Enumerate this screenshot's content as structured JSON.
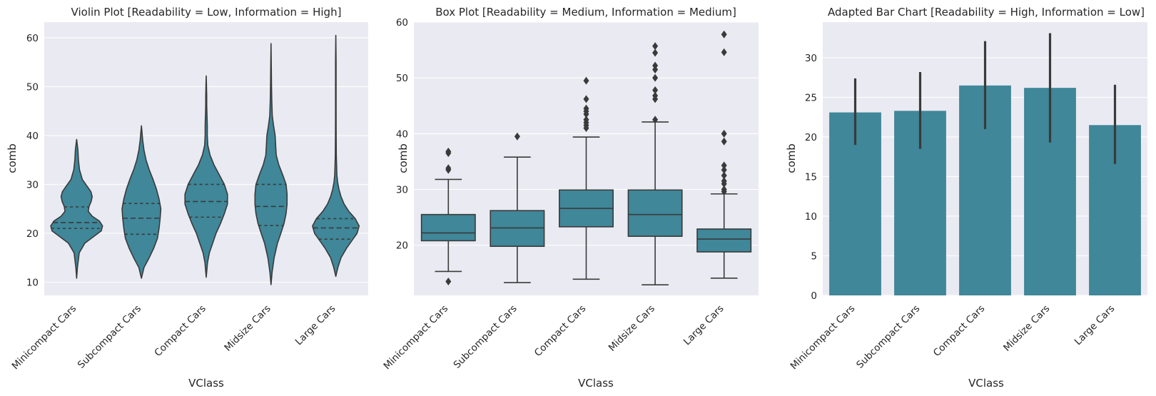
{
  "style": {
    "axes_bg": "#eaeaf2",
    "grid": "#ffffff",
    "fill": "#3f8799",
    "edge": "#3a3a3a"
  },
  "chart_data": [
    {
      "type": "violin",
      "title": "Violin Plot  [Readability = Low, Information = High]",
      "xlabel": "VClass",
      "ylabel": "comb",
      "categories": [
        "Minicompact Cars",
        "Subcompact Cars",
        "Compact Cars",
        "Midsize Cars",
        "Large Cars"
      ],
      "ylim": [
        7.3,
        63.2
      ],
      "yticks": [
        10,
        20,
        30,
        40,
        50,
        60
      ],
      "quartiles": [
        {
          "q1": 21.0,
          "median": 22.2,
          "q3": 25.4
        },
        {
          "q1": 19.8,
          "median": 23.1,
          "q3": 26.1
        },
        {
          "q1": 23.3,
          "median": 26.5,
          "q3": 30.0
        },
        {
          "q1": 21.6,
          "median": 25.5,
          "q3": 30.0
        },
        {
          "q1": 18.8,
          "median": 21.1,
          "q3": 23.0
        }
      ],
      "density_profiles": [
        {
          "y": [
            10.8,
            13,
            16,
            18,
            19.5,
            20.5,
            21.5,
            22.5,
            23.5,
            24.5,
            25.5,
            26.5,
            27.5,
            28.5,
            29.5,
            31,
            33,
            35,
            37,
            39.2
          ],
          "width": [
            0,
            0.03,
            0.1,
            0.32,
            0.7,
            0.95,
            1.0,
            0.88,
            0.6,
            0.45,
            0.48,
            0.56,
            0.6,
            0.55,
            0.42,
            0.22,
            0.11,
            0.07,
            0.05,
            0
          ]
        },
        {
          "y": [
            10.8,
            13,
            15,
            17,
            19,
            21,
            23,
            25,
            27,
            29,
            31,
            33,
            35,
            37,
            39,
            42
          ],
          "width": [
            0,
            0.1,
            0.3,
            0.48,
            0.62,
            0.68,
            0.72,
            0.75,
            0.68,
            0.58,
            0.45,
            0.3,
            0.18,
            0.1,
            0.05,
            0
          ]
        },
        {
          "y": [
            11,
            14,
            16,
            18,
            20,
            22,
            24,
            26,
            28,
            30,
            32,
            34,
            36,
            38,
            40,
            42,
            44,
            46,
            48,
            50,
            52.2
          ],
          "width": [
            0,
            0.05,
            0.12,
            0.25,
            0.38,
            0.55,
            0.7,
            0.82,
            0.82,
            0.7,
            0.5,
            0.3,
            0.15,
            0.06,
            0.04,
            0.04,
            0.03,
            0.02,
            0.02,
            0.01,
            0
          ]
        },
        {
          "y": [
            9.5,
            12,
            15,
            18,
            20,
            22,
            24,
            26,
            28,
            30,
            32,
            34,
            36,
            38,
            40,
            42,
            44,
            47,
            50,
            54,
            58.8
          ],
          "width": [
            0,
            0.04,
            0.12,
            0.25,
            0.38,
            0.5,
            0.58,
            0.62,
            0.62,
            0.58,
            0.45,
            0.3,
            0.2,
            0.18,
            0.16,
            0.1,
            0.05,
            0.03,
            0.02,
            0.01,
            0
          ]
        },
        {
          "y": [
            11.2,
            13,
            15,
            17,
            18.5,
            20,
            21.5,
            23,
            24.5,
            26,
            27.5,
            29,
            30.5,
            32,
            34,
            36,
            40,
            45,
            50,
            55,
            60.5
          ],
          "width": [
            0,
            0.08,
            0.2,
            0.42,
            0.62,
            0.82,
            0.9,
            0.75,
            0.5,
            0.32,
            0.2,
            0.12,
            0.07,
            0.04,
            0.03,
            0.02,
            0.015,
            0.01,
            0.01,
            0.01,
            0
          ]
        }
      ]
    },
    {
      "type": "box",
      "title": "Box Plot  [Readability = Medium, Information = Medium]",
      "xlabel": "VClass",
      "ylabel": "comb",
      "categories": [
        "Minicompact Cars",
        "Subcompact Cars",
        "Compact Cars",
        "Midsize Cars",
        "Large Cars"
      ],
      "ylim": [
        11,
        60
      ],
      "yticks": [
        20,
        30,
        40,
        50,
        60
      ],
      "boxes": [
        {
          "whisker_low": 15.3,
          "q1": 20.8,
          "median": 22.2,
          "q3": 25.5,
          "whisker_high": 31.8,
          "outliers": [
            13.5,
            33.5,
            33.8,
            36.5,
            36.8
          ]
        },
        {
          "whisker_low": 13.3,
          "q1": 19.8,
          "median": 23.1,
          "q3": 26.2,
          "whisker_high": 35.8,
          "outliers": [
            39.5
          ]
        },
        {
          "whisker_low": 13.9,
          "q1": 23.3,
          "median": 26.6,
          "q3": 29.9,
          "whisker_high": 39.4,
          "outliers": [
            41.0,
            41.5,
            42.0,
            42.5,
            43.5,
            44.0,
            44.5,
            46.2,
            49.5
          ]
        },
        {
          "whisker_low": 12.9,
          "q1": 21.6,
          "median": 25.5,
          "q3": 29.9,
          "whisker_high": 42.1,
          "outliers": [
            42.5,
            46.2,
            46.8,
            47.8,
            50.0,
            51.5,
            52.2,
            54.5,
            55.7
          ]
        },
        {
          "whisker_low": 14.1,
          "q1": 18.8,
          "median": 21.1,
          "q3": 22.9,
          "whisker_high": 29.2,
          "outliers": [
            29.6,
            30.0,
            31.0,
            31.5,
            32.5,
            33.5,
            34.3,
            38.6,
            40.0,
            54.6,
            57.8
          ]
        }
      ]
    },
    {
      "type": "bar",
      "title": "Adapted Bar Chart  [Readability = High, Information = Low]",
      "xlabel": "VClass",
      "ylabel": "comb",
      "categories": [
        "Minicompact Cars",
        "Subcompact Cars",
        "Compact Cars",
        "Midsize Cars",
        "Large Cars"
      ],
      "values": [
        23.1,
        23.3,
        26.5,
        26.2,
        21.5
      ],
      "error_low": [
        19.0,
        18.5,
        21.0,
        19.3,
        16.6
      ],
      "error_high": [
        27.4,
        28.2,
        32.1,
        33.1,
        26.6
      ],
      "ylim": [
        0,
        34.5
      ],
      "yticks": [
        0,
        5,
        10,
        15,
        20,
        25,
        30
      ]
    }
  ]
}
